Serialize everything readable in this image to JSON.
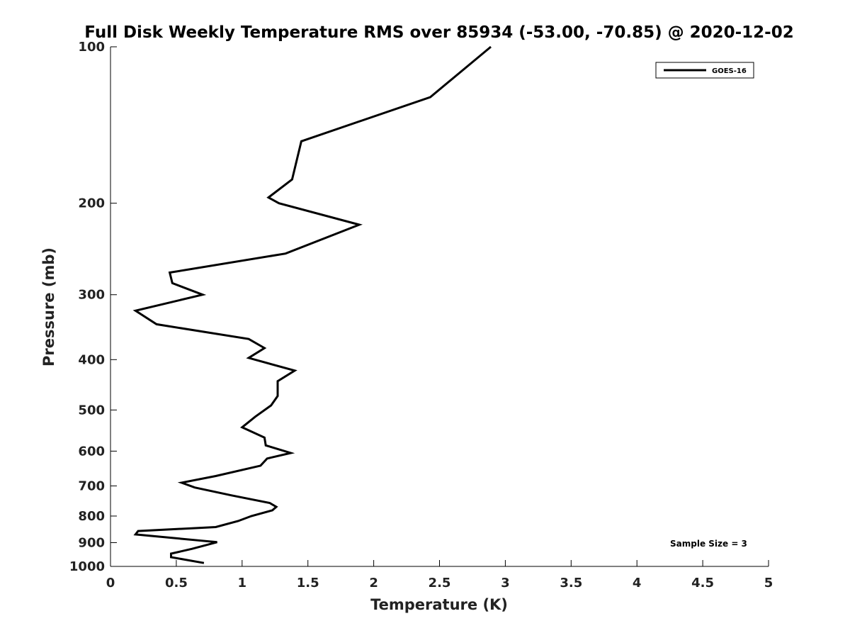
{
  "chart_data": {
    "type": "line",
    "title": "Full Disk Weekly Temperature RMS over 85934 (-53.00, -70.85) @ 2020-12-02",
    "xlabel": "Temperature (K)",
    "ylabel": "Pressure (mb)",
    "xlim": [
      0,
      5
    ],
    "ylim": [
      100,
      1000
    ],
    "y_scale": "log",
    "y_reversed": true,
    "x_ticks": [
      0,
      0.5,
      1,
      1.5,
      2,
      2.5,
      3,
      3.5,
      4,
      4.5,
      5
    ],
    "x_tick_labels": [
      "0",
      "0.5",
      "1",
      "1.5",
      "2",
      "2.5",
      "3",
      "3.5",
      "4",
      "4.5",
      "5"
    ],
    "y_ticks": [
      100,
      200,
      300,
      400,
      500,
      600,
      700,
      800,
      900,
      1000
    ],
    "y_tick_labels": [
      "100",
      "200",
      "300",
      "400",
      "500",
      "600",
      "700",
      "800",
      "900",
      "1000"
    ],
    "grid": false,
    "legend_position": "top-right",
    "series": [
      {
        "name": "GOES-16",
        "color": "#000000",
        "points": [
          [
            2.89,
            100
          ],
          [
            2.43,
            125
          ],
          [
            1.45,
            152
          ],
          [
            1.38,
            180
          ],
          [
            1.2,
            195
          ],
          [
            1.28,
            200
          ],
          [
            1.89,
            220
          ],
          [
            1.33,
            250
          ],
          [
            0.45,
            272
          ],
          [
            0.47,
            285
          ],
          [
            0.7,
            300
          ],
          [
            0.19,
            322
          ],
          [
            0.35,
            342
          ],
          [
            1.05,
            365
          ],
          [
            1.17,
            380
          ],
          [
            1.05,
            397
          ],
          [
            1.4,
            420
          ],
          [
            1.27,
            440
          ],
          [
            1.27,
            470
          ],
          [
            1.22,
            490
          ],
          [
            1.1,
            515
          ],
          [
            1.0,
            540
          ],
          [
            1.17,
            565
          ],
          [
            1.18,
            585
          ],
          [
            1.37,
            605
          ],
          [
            1.19,
            620
          ],
          [
            1.14,
            640
          ],
          [
            0.8,
            670
          ],
          [
            0.54,
            690
          ],
          [
            0.64,
            705
          ],
          [
            0.92,
            730
          ],
          [
            1.21,
            755
          ],
          [
            1.26,
            768
          ],
          [
            1.23,
            780
          ],
          [
            1.07,
            800
          ],
          [
            0.97,
            818
          ],
          [
            0.8,
            840
          ],
          [
            0.21,
            855
          ],
          [
            0.19,
            868
          ],
          [
            0.81,
            898
          ],
          [
            0.62,
            925
          ],
          [
            0.46,
            945
          ],
          [
            0.46,
            960
          ],
          [
            0.71,
            985
          ]
        ]
      }
    ],
    "annotations": [
      "Sample Size = 3"
    ]
  }
}
